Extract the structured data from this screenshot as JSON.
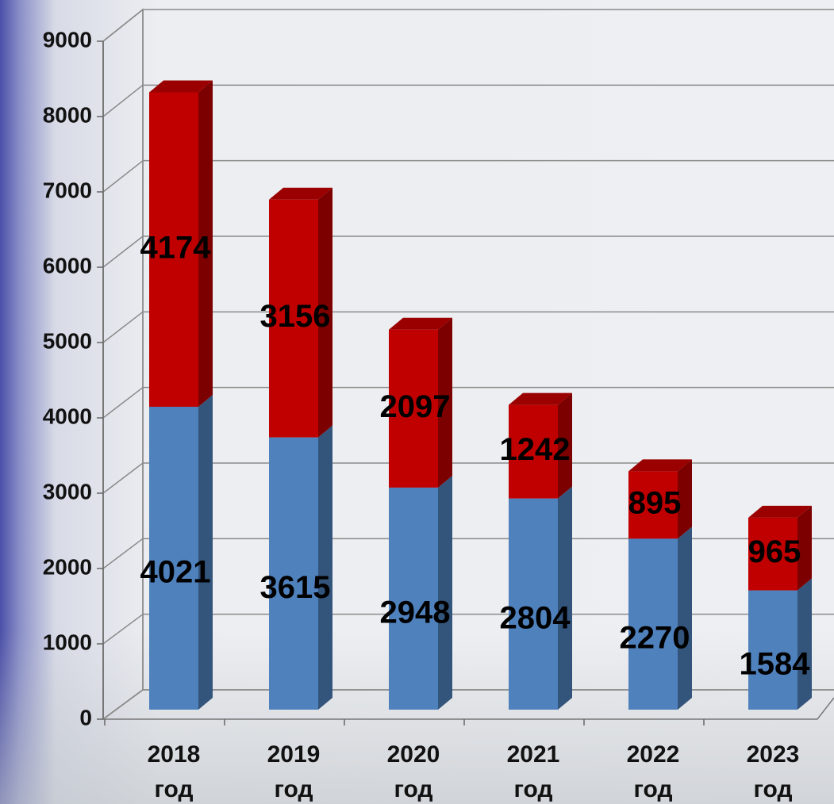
{
  "chart_data": {
    "type": "bar3d_stacked",
    "categories": [
      "2018 год",
      "2019 год",
      "2020 год",
      "2021 год",
      "2022 год",
      "2023 год"
    ],
    "series": [
      {
        "color": "#4f81bd",
        "values": [
          4021,
          3615,
          2948,
          2804,
          2270,
          1584
        ]
      },
      {
        "color": "#c00000",
        "values": [
          4174,
          3156,
          2097,
          1242,
          895,
          965
        ]
      }
    ],
    "ylim": [
      0,
      9000
    ],
    "yticks": [
      0,
      1000,
      2000,
      3000,
      4000,
      5000,
      6000,
      7000,
      8000,
      9000
    ],
    "grid": true
  }
}
